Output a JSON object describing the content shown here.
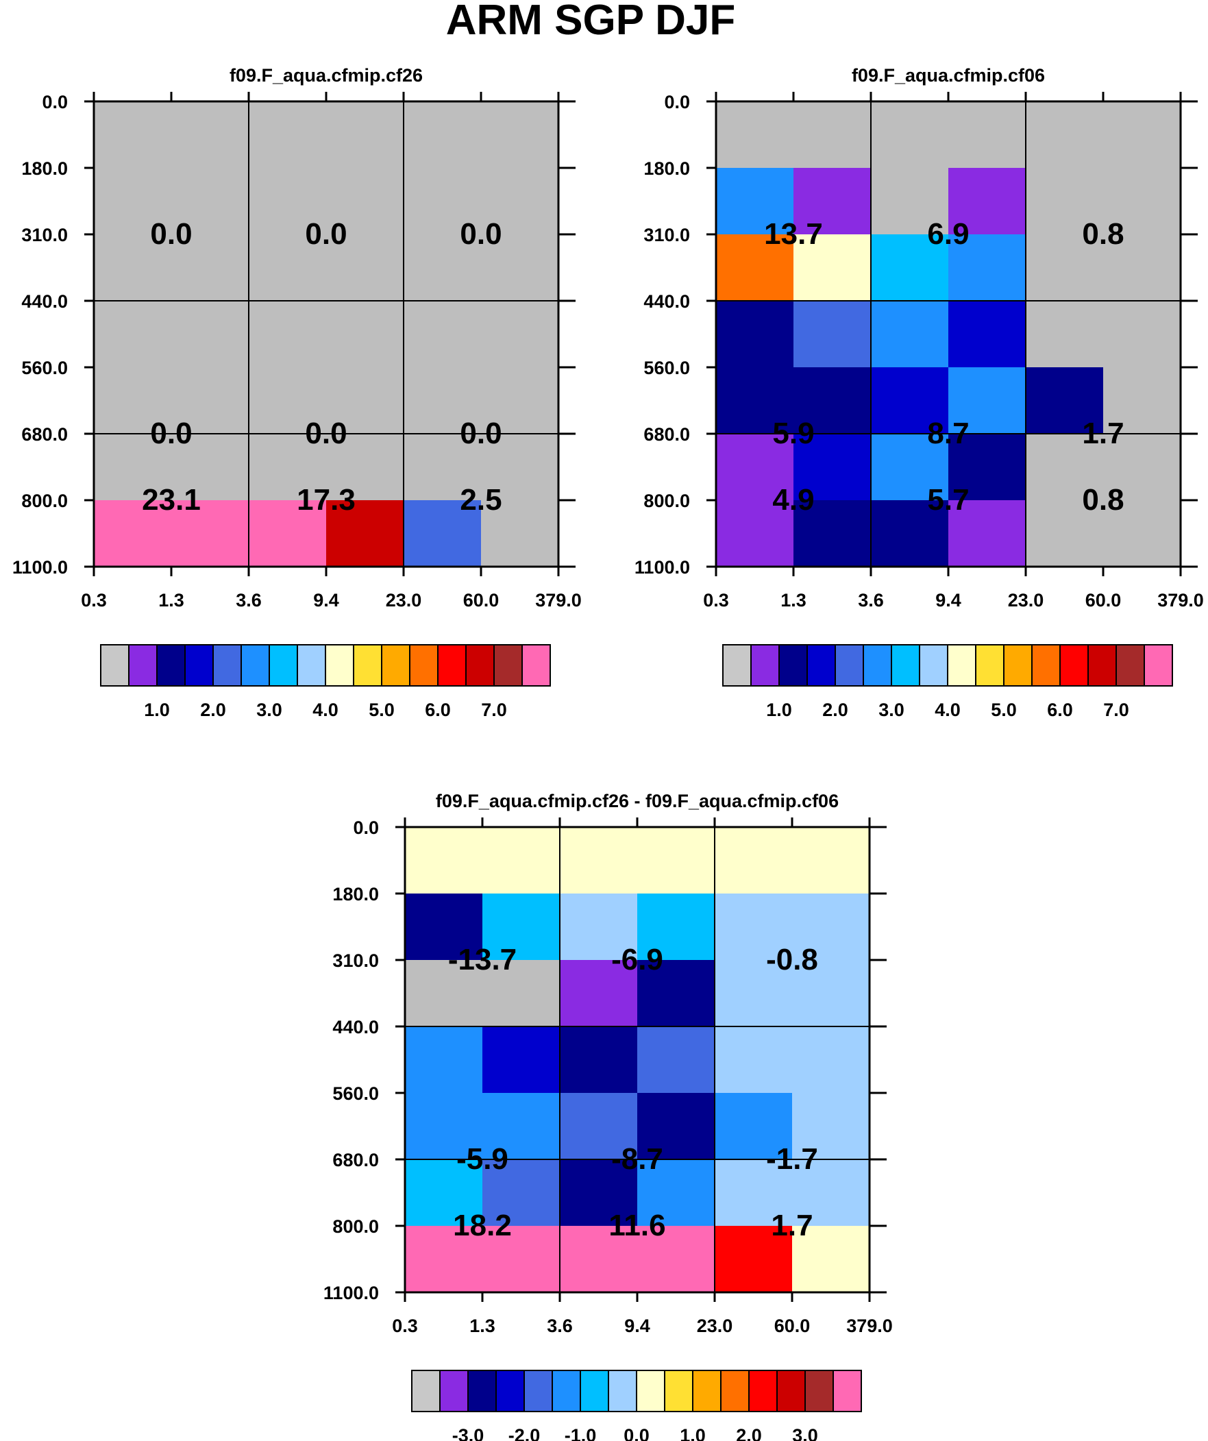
{
  "title": "ARM SGP DJF",
  "chart_data": [
    {
      "type": "heatmap",
      "title": "f09.F_aqua.cfmip.cf26",
      "x_ticks": [
        "0.3",
        "1.3",
        "3.6",
        "9.4",
        "23.0",
        "60.0",
        "379.0"
      ],
      "y_ticks": [
        "0.0",
        "180.0",
        "310.0",
        "440.0",
        "560.0",
        "680.0",
        "800.0",
        "1100.0"
      ],
      "cell_colors": [
        [
          "#bebebe",
          "#bebebe",
          "#bebebe",
          "#bebebe",
          "#bebebe",
          "#bebebe"
        ],
        [
          "#bebebe",
          "#bebebe",
          "#bebebe",
          "#bebebe",
          "#bebebe",
          "#bebebe"
        ],
        [
          "#bebebe",
          "#bebebe",
          "#bebebe",
          "#bebebe",
          "#bebebe",
          "#bebebe"
        ],
        [
          "#bebebe",
          "#bebebe",
          "#bebebe",
          "#bebebe",
          "#bebebe",
          "#bebebe"
        ],
        [
          "#bebebe",
          "#bebebe",
          "#bebebe",
          "#bebebe",
          "#bebebe",
          "#bebebe"
        ],
        [
          "#bebebe",
          "#bebebe",
          "#bebebe",
          "#bebebe",
          "#bebebe",
          "#bebebe"
        ],
        [
          "#ff69b4",
          "#ff69b4",
          "#ff69b4",
          "#cc0000",
          "#4169e1",
          "#bebebe"
        ]
      ],
      "values": [
        [
          "0.0",
          "0.0",
          "0.0"
        ],
        [
          "0.0",
          "0.0",
          "0.0"
        ],
        [
          "23.1",
          "17.3",
          "2.5"
        ]
      ],
      "colorbar_colors": [
        "#c8c8c8",
        "#8a2be2",
        "#00008b",
        "#0000cd",
        "#4169e1",
        "#1e90ff",
        "#00bfff",
        "#a0d0ff",
        "#ffffcc",
        "#ffe033",
        "#ffaa00",
        "#ff7000",
        "#ff0000",
        "#cc0000",
        "#a52a2a",
        "#ff69b4"
      ],
      "colorbar_labels": [
        "1.0",
        "2.0",
        "3.0",
        "4.0",
        "5.0",
        "6.0",
        "7.0"
      ],
      "colorbar_label_start": 1
    },
    {
      "type": "heatmap",
      "title": "f09.F_aqua.cfmip.cf06",
      "x_ticks": [
        "0.3",
        "1.3",
        "3.6",
        "9.4",
        "23.0",
        "60.0",
        "379.0"
      ],
      "y_ticks": [
        "0.0",
        "180.0",
        "310.0",
        "440.0",
        "560.0",
        "680.0",
        "800.0",
        "1100.0"
      ],
      "cell_colors": [
        [
          "#bebebe",
          "#bebebe",
          "#bebebe",
          "#bebebe",
          "#bebebe",
          "#bebebe"
        ],
        [
          "#1e90ff",
          "#8a2be2",
          "#bebebe",
          "#8a2be2",
          "#bebebe",
          "#bebebe"
        ],
        [
          "#ff7000",
          "#ffffcc",
          "#00bfff",
          "#1e90ff",
          "#bebebe",
          "#bebebe"
        ],
        [
          "#00008b",
          "#4169e1",
          "#1e90ff",
          "#0000cd",
          "#bebebe",
          "#bebebe"
        ],
        [
          "#00008b",
          "#00008b",
          "#0000cd",
          "#1e90ff",
          "#00008b",
          "#bebebe"
        ],
        [
          "#8a2be2",
          "#0000cd",
          "#1e90ff",
          "#00008b",
          "#bebebe",
          "#bebebe"
        ],
        [
          "#8a2be2",
          "#00008b",
          "#00008b",
          "#8a2be2",
          "#bebebe",
          "#bebebe"
        ]
      ],
      "values": [
        [
          "13.7",
          "6.9",
          "0.8"
        ],
        [
          "5.9",
          "8.7",
          "1.7"
        ],
        [
          "4.9",
          "5.7",
          "0.8"
        ]
      ],
      "colorbar_colors": [
        "#c8c8c8",
        "#8a2be2",
        "#00008b",
        "#0000cd",
        "#4169e1",
        "#1e90ff",
        "#00bfff",
        "#a0d0ff",
        "#ffffcc",
        "#ffe033",
        "#ffaa00",
        "#ff7000",
        "#ff0000",
        "#cc0000",
        "#a52a2a",
        "#ff69b4"
      ],
      "colorbar_labels": [
        "1.0",
        "2.0",
        "3.0",
        "4.0",
        "5.0",
        "6.0",
        "7.0"
      ],
      "colorbar_label_start": 1
    },
    {
      "type": "heatmap",
      "title": "f09.F_aqua.cfmip.cf26 - f09.F_aqua.cfmip.cf06",
      "x_ticks": [
        "0.3",
        "1.3",
        "3.6",
        "9.4",
        "23.0",
        "60.0",
        "379.0"
      ],
      "y_ticks": [
        "0.0",
        "180.0",
        "310.0",
        "440.0",
        "560.0",
        "680.0",
        "800.0",
        "1100.0"
      ],
      "cell_colors": [
        [
          "#ffffcc",
          "#ffffcc",
          "#ffffcc",
          "#ffffcc",
          "#ffffcc",
          "#ffffcc"
        ],
        [
          "#00008b",
          "#00bfff",
          "#a0d0ff",
          "#00bfff",
          "#a0d0ff",
          "#a0d0ff"
        ],
        [
          "#bebebe",
          "#bebebe",
          "#8a2be2",
          "#00008b",
          "#a0d0ff",
          "#a0d0ff"
        ],
        [
          "#1e90ff",
          "#0000cd",
          "#00008b",
          "#4169e1",
          "#a0d0ff",
          "#a0d0ff"
        ],
        [
          "#1e90ff",
          "#1e90ff",
          "#4169e1",
          "#00008b",
          "#1e90ff",
          "#a0d0ff"
        ],
        [
          "#00bfff",
          "#4169e1",
          "#00008b",
          "#1e90ff",
          "#a0d0ff",
          "#a0d0ff"
        ],
        [
          "#ff69b4",
          "#ff69b4",
          "#ff69b4",
          "#ff69b4",
          "#ff0000",
          "#ffffcc"
        ]
      ],
      "values": [
        [
          "-13.7",
          "-6.9",
          "-0.8"
        ],
        [
          "-5.9",
          "-8.7",
          "-1.7"
        ],
        [
          "18.2",
          "11.6",
          "1.7"
        ]
      ],
      "colorbar_colors": [
        "#c8c8c8",
        "#8a2be2",
        "#00008b",
        "#0000cd",
        "#4169e1",
        "#1e90ff",
        "#00bfff",
        "#a0d0ff",
        "#ffffcc",
        "#ffe033",
        "#ffaa00",
        "#ff7000",
        "#ff0000",
        "#cc0000",
        "#a52a2a",
        "#ff69b4"
      ],
      "colorbar_labels": [
        "-3.0",
        "-2.0",
        "-1.0",
        "0.0",
        "1.0",
        "2.0",
        "3.0"
      ],
      "colorbar_label_start": 1
    }
  ]
}
